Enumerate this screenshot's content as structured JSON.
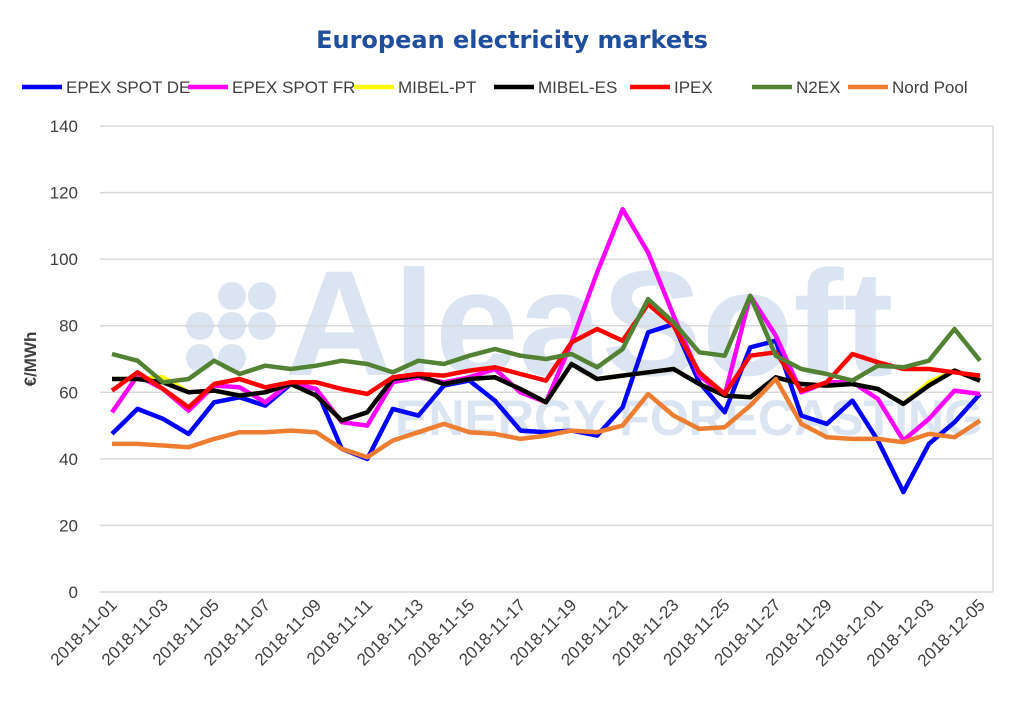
{
  "watermark": {
    "logo": "AleaSoft",
    "tagline": "ENERGY FORECASTING"
  },
  "chart_data": {
    "type": "line",
    "title": "European electricity markets",
    "xlabel": "",
    "ylabel": "€/MWh",
    "ylim": [
      0,
      140
    ],
    "yticks": [
      0,
      20,
      40,
      60,
      80,
      100,
      120,
      140
    ],
    "grid": true,
    "legend_placement": "top",
    "x": [
      "2018-11-01",
      "2018-11-02",
      "2018-11-03",
      "2018-11-04",
      "2018-11-05",
      "2018-11-06",
      "2018-11-07",
      "2018-11-08",
      "2018-11-09",
      "2018-11-10",
      "2018-11-11",
      "2018-11-12",
      "2018-11-13",
      "2018-11-14",
      "2018-11-15",
      "2018-11-16",
      "2018-11-17",
      "2018-11-18",
      "2018-11-19",
      "2018-11-20",
      "2018-11-21",
      "2018-11-22",
      "2018-11-23",
      "2018-11-24",
      "2018-11-25",
      "2018-11-26",
      "2018-11-27",
      "2018-11-28",
      "2018-11-29",
      "2018-11-30",
      "2018-12-01",
      "2018-12-02",
      "2018-12-03",
      "2018-12-04",
      "2018-12-05"
    ],
    "xtick_labels": [
      "2018-11-01",
      "2018-11-03",
      "2018-11-05",
      "2018-11-07",
      "2018-11-09",
      "2018-11-11",
      "2018-11-13",
      "2018-11-15",
      "2018-11-17",
      "2018-11-19",
      "2018-11-21",
      "2018-11-23",
      "2018-11-25",
      "2018-11-27",
      "2018-11-29",
      "2018-12-01",
      "2018-12-03",
      "2018-12-05"
    ],
    "series": [
      {
        "name": "EPEX SPOT DE",
        "color": "#0000ff",
        "values": [
          47.5,
          55,
          52,
          47.5,
          57,
          58.5,
          56,
          62.5,
          61,
          43,
          40,
          55,
          53,
          62,
          63.5,
          57.5,
          48.5,
          48,
          48.5,
          47,
          55.5,
          78,
          80.5,
          63,
          54,
          73.5,
          75.5,
          53,
          50.5,
          57.5,
          45.5,
          30,
          44.5,
          51,
          59.5
        ]
      },
      {
        "name": "EPEX SPOT FR",
        "color": "#ff00ff",
        "values": [
          54,
          65,
          61,
          54.5,
          62,
          61.5,
          57,
          63,
          61,
          51,
          50,
          63,
          64.5,
          63,
          64.5,
          67,
          60,
          57,
          75,
          96,
          115,
          102,
          83,
          65,
          59,
          89,
          77,
          60,
          63,
          63,
          58,
          45.5,
          52,
          60.5,
          59.5
        ]
      },
      {
        "name": "MIBEL-PT",
        "color": "#ffff00",
        "values": [
          64,
          64,
          64.5,
          60,
          60.5,
          59,
          60,
          62.5,
          59,
          51.5,
          54,
          64,
          65,
          62.5,
          64,
          64.5,
          61,
          57,
          68.5,
          64,
          65,
          66,
          67,
          62.5,
          59,
          58.5,
          64.5,
          62.5,
          62,
          62.5,
          61,
          56.5,
          63,
          66.5,
          63.5
        ]
      },
      {
        "name": "MIBEL-ES",
        "color": "#000000",
        "values": [
          64,
          64,
          63,
          60,
          60.5,
          59,
          60,
          62.5,
          59,
          51.5,
          54,
          64,
          65,
          62.5,
          64,
          64.5,
          61,
          57,
          68.5,
          64,
          65,
          66,
          67,
          62.5,
          59,
          58.5,
          64.5,
          62.5,
          62,
          62.5,
          61,
          56.5,
          62,
          66.5,
          63.5
        ]
      },
      {
        "name": "IPEX",
        "color": "#ff0000",
        "values": [
          60.5,
          66,
          61,
          55.5,
          62.5,
          64,
          61.5,
          63,
          63,
          61,
          59.5,
          64.5,
          65.5,
          65,
          66.5,
          67.5,
          65.5,
          63.5,
          75,
          79,
          75.5,
          86.5,
          80,
          66,
          59.5,
          71,
          72,
          60.5,
          63,
          71.5,
          69,
          67,
          67,
          66,
          65
        ]
      },
      {
        "name": "N2EX",
        "color": "#548235",
        "values": [
          71.5,
          69.5,
          63,
          64,
          69.5,
          65.5,
          68,
          67,
          68,
          69.5,
          68.5,
          66,
          69.5,
          68.5,
          71,
          73,
          71,
          70,
          71.5,
          67.5,
          73,
          88,
          81,
          72,
          71,
          89,
          71,
          67,
          65.5,
          63.5,
          68,
          67.5,
          69.5,
          79,
          69.5
        ]
      },
      {
        "name": "Nord Pool",
        "color": "#ed7d31",
        "values": [
          44.5,
          44.5,
          44,
          43.5,
          46,
          48,
          48,
          48.5,
          48,
          43,
          40.5,
          45.5,
          48,
          50.5,
          48,
          47.5,
          46,
          47,
          48.5,
          48,
          50,
          59.5,
          53,
          49,
          49.5,
          56,
          64,
          50.5,
          46.5,
          46,
          46,
          45,
          47.5,
          46.5,
          51.5
        ]
      }
    ]
  }
}
